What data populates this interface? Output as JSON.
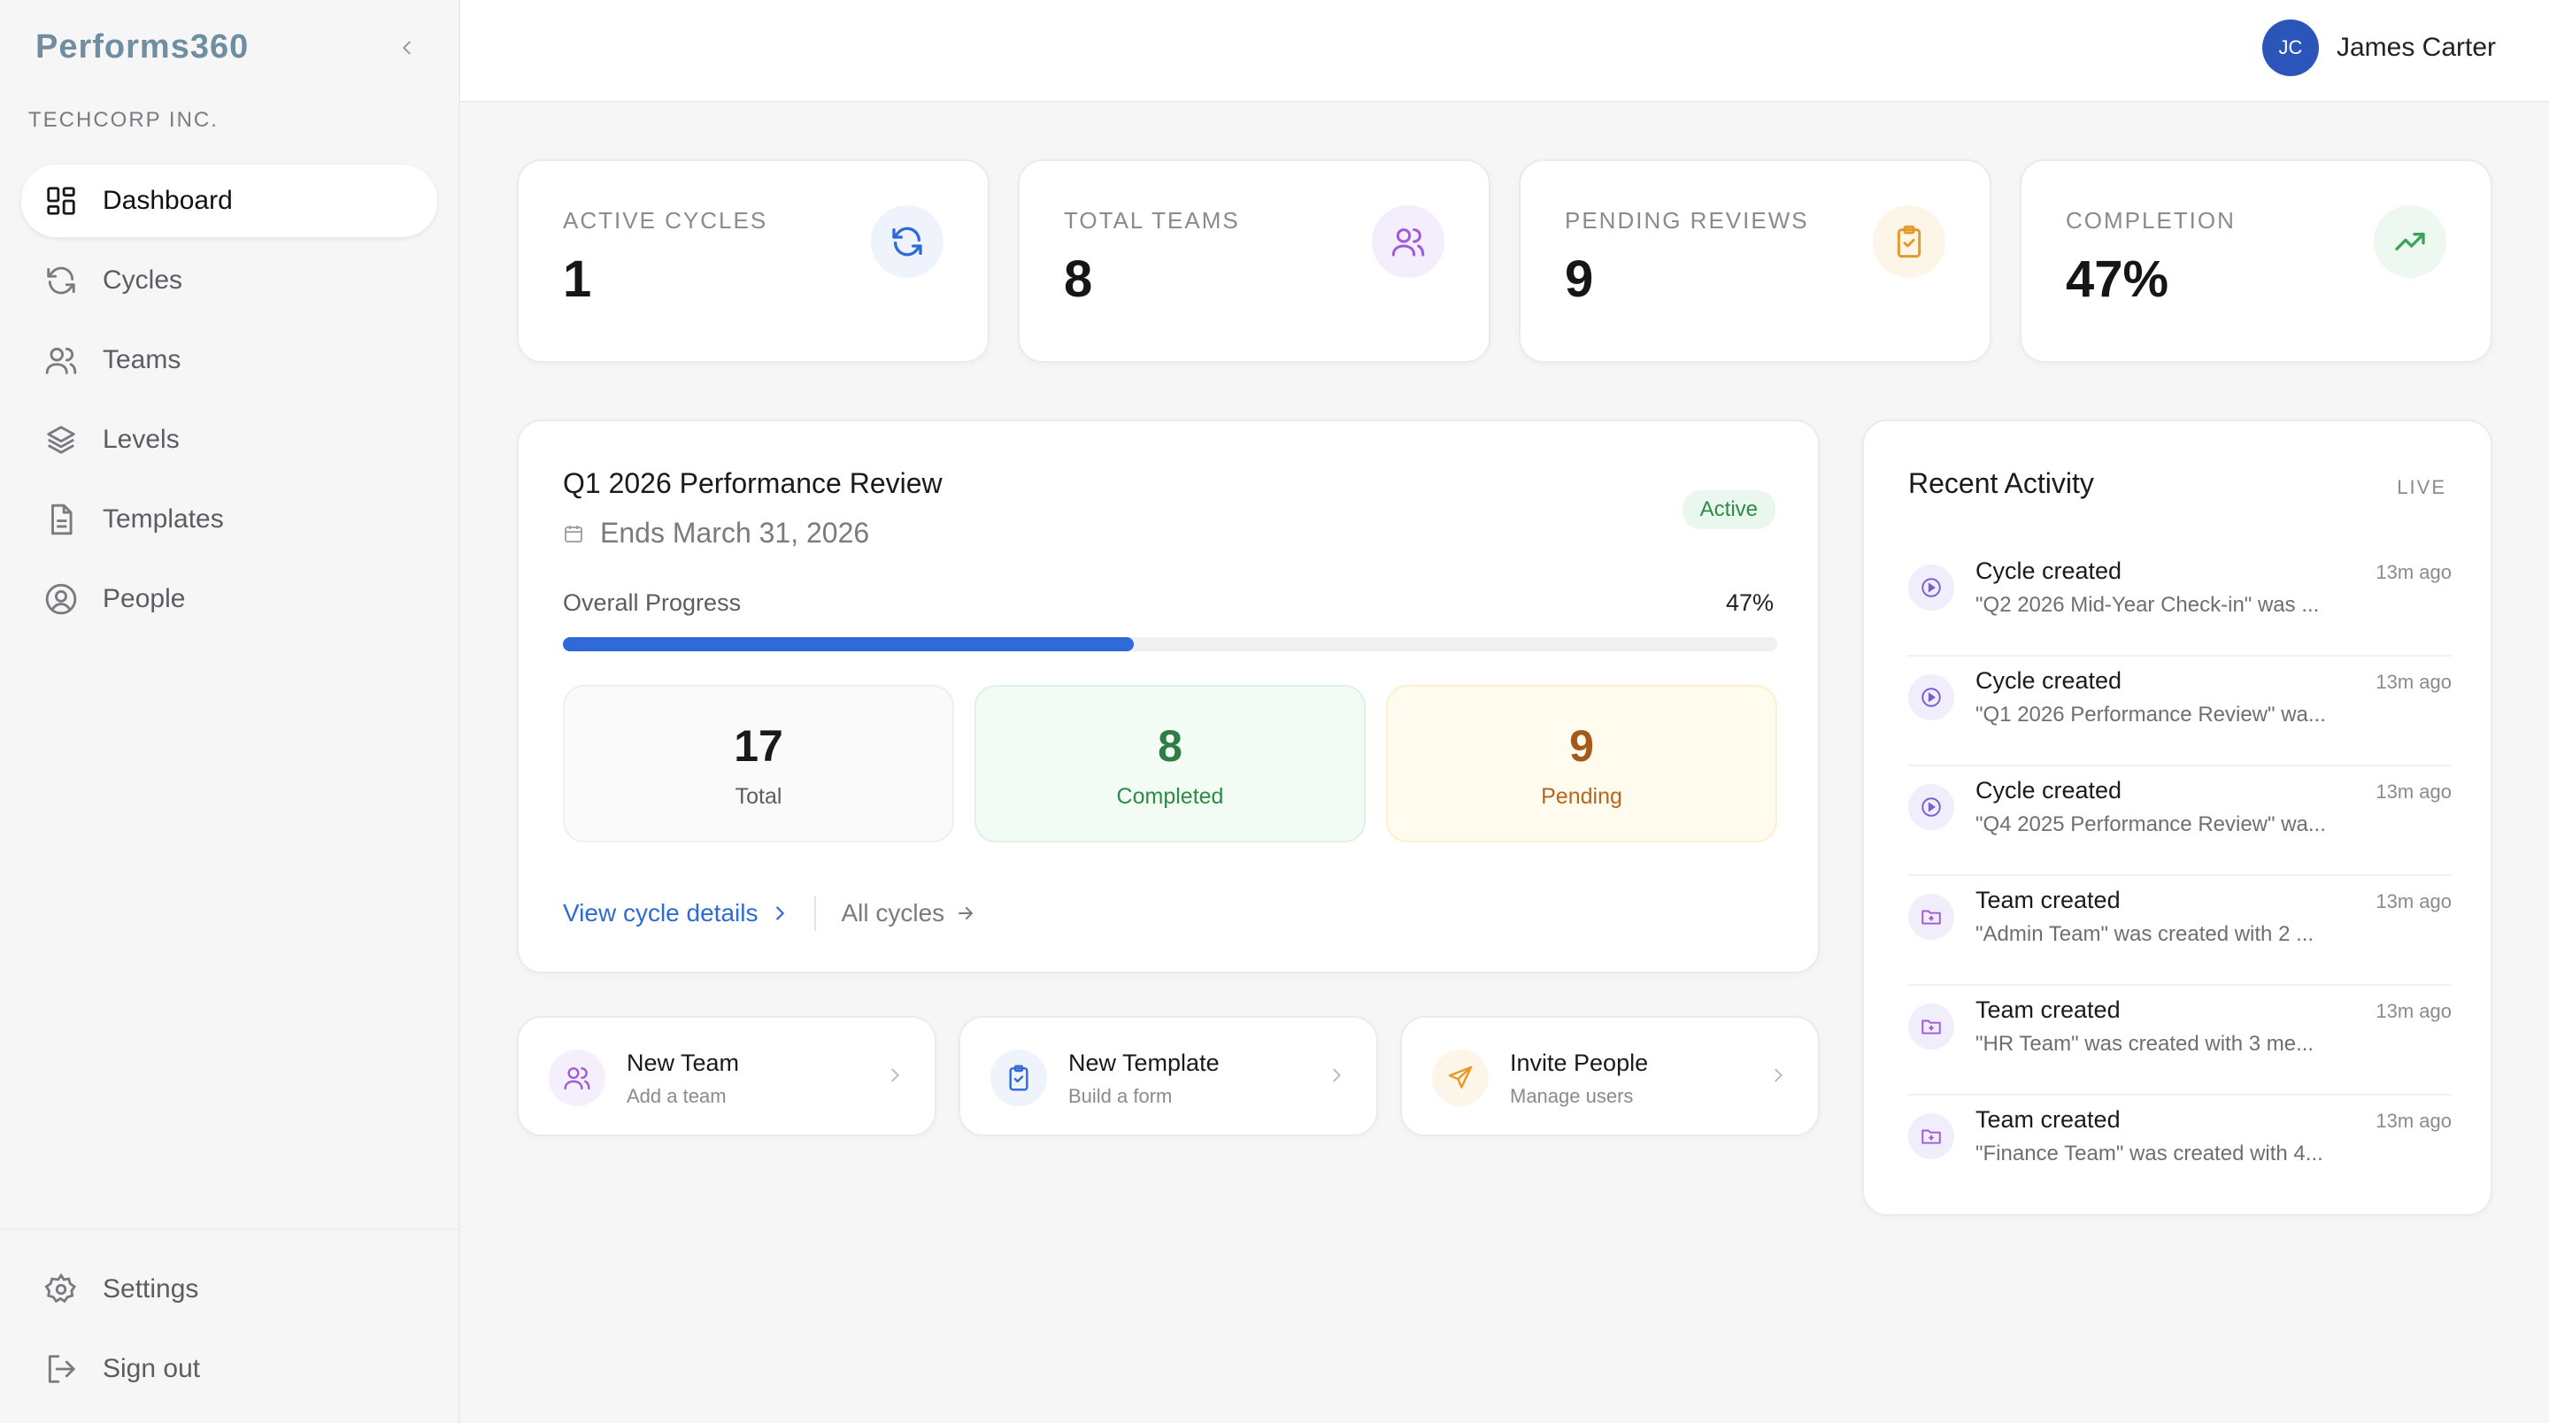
{
  "app": {
    "logo_text": "Performs360",
    "org_name": "TECHCORP INC."
  },
  "sidebar": {
    "items": [
      {
        "label": "Dashboard",
        "icon": "grid-icon"
      },
      {
        "label": "Cycles",
        "icon": "refresh-icon"
      },
      {
        "label": "Teams",
        "icon": "users-icon"
      },
      {
        "label": "Levels",
        "icon": "layers-icon"
      },
      {
        "label": "Templates",
        "icon": "document-icon"
      },
      {
        "label": "People",
        "icon": "user-circle-icon"
      }
    ],
    "bottom": [
      {
        "label": "Settings",
        "icon": "gear-icon"
      },
      {
        "label": "Sign out",
        "icon": "sign-out-icon"
      }
    ]
  },
  "header": {
    "user_initials": "JC",
    "user_name": "James Carter"
  },
  "stats": [
    {
      "label": "ACTIVE CYCLES",
      "value": "1",
      "icon": "refresh-icon",
      "color": "#2f6ad8",
      "bg": "#eef3fc"
    },
    {
      "label": "TOTAL TEAMS",
      "value": "8",
      "icon": "users-icon",
      "color": "#a05ad8",
      "bg": "#f4eefc"
    },
    {
      "label": "PENDING REVIEWS",
      "value": "9",
      "icon": "clipboard-icon",
      "color": "#e39a2a",
      "bg": "#fdf5e8"
    },
    {
      "label": "COMPLETION",
      "value": "47%",
      "icon": "trending-up-icon",
      "color": "#3aa35a",
      "bg": "#edf8f0"
    }
  ],
  "cycle": {
    "title": "Q1 2026 Performance Review",
    "ends": "Ends March 31, 2026",
    "status": "Active",
    "progress_label": "Overall Progress",
    "progress_text": "47%",
    "progress_value": 0.47,
    "tiles": [
      {
        "value": "17",
        "label": "Total"
      },
      {
        "value": "8",
        "label": "Completed"
      },
      {
        "value": "9",
        "label": "Pending"
      }
    ],
    "link_primary": "View cycle details",
    "link_secondary": "All cycles"
  },
  "quick_actions": [
    {
      "title": "New Team",
      "subtitle": "Add a team",
      "icon": "users-icon"
    },
    {
      "title": "New Template",
      "subtitle": "Build a form",
      "icon": "clipboard-icon"
    },
    {
      "title": "Invite People",
      "subtitle": "Manage users",
      "icon": "send-icon"
    }
  ],
  "activity": {
    "title": "Recent Activity",
    "live_label": "LIVE",
    "items": [
      {
        "title": "Cycle created",
        "time": "13m ago",
        "desc": "\"Q2 2026 Mid-Year Check-in\" was ...",
        "icon": "play-circle-icon"
      },
      {
        "title": "Cycle created",
        "time": "13m ago",
        "desc": "\"Q1 2026 Performance Review\" wa...",
        "icon": "play-circle-icon"
      },
      {
        "title": "Cycle created",
        "time": "13m ago",
        "desc": "\"Q4 2025 Performance Review\" wa...",
        "icon": "play-circle-icon"
      },
      {
        "title": "Team created",
        "time": "13m ago",
        "desc": "\"Admin Team\" was created with 2 ...",
        "icon": "folder-plus-icon"
      },
      {
        "title": "Team created",
        "time": "13m ago",
        "desc": "\"HR Team\" was created with 3 me...",
        "icon": "folder-plus-icon"
      },
      {
        "title": "Team created",
        "time": "13m ago",
        "desc": "\"Finance Team\" was created with 4...",
        "icon": "folder-plus-icon"
      }
    ]
  }
}
